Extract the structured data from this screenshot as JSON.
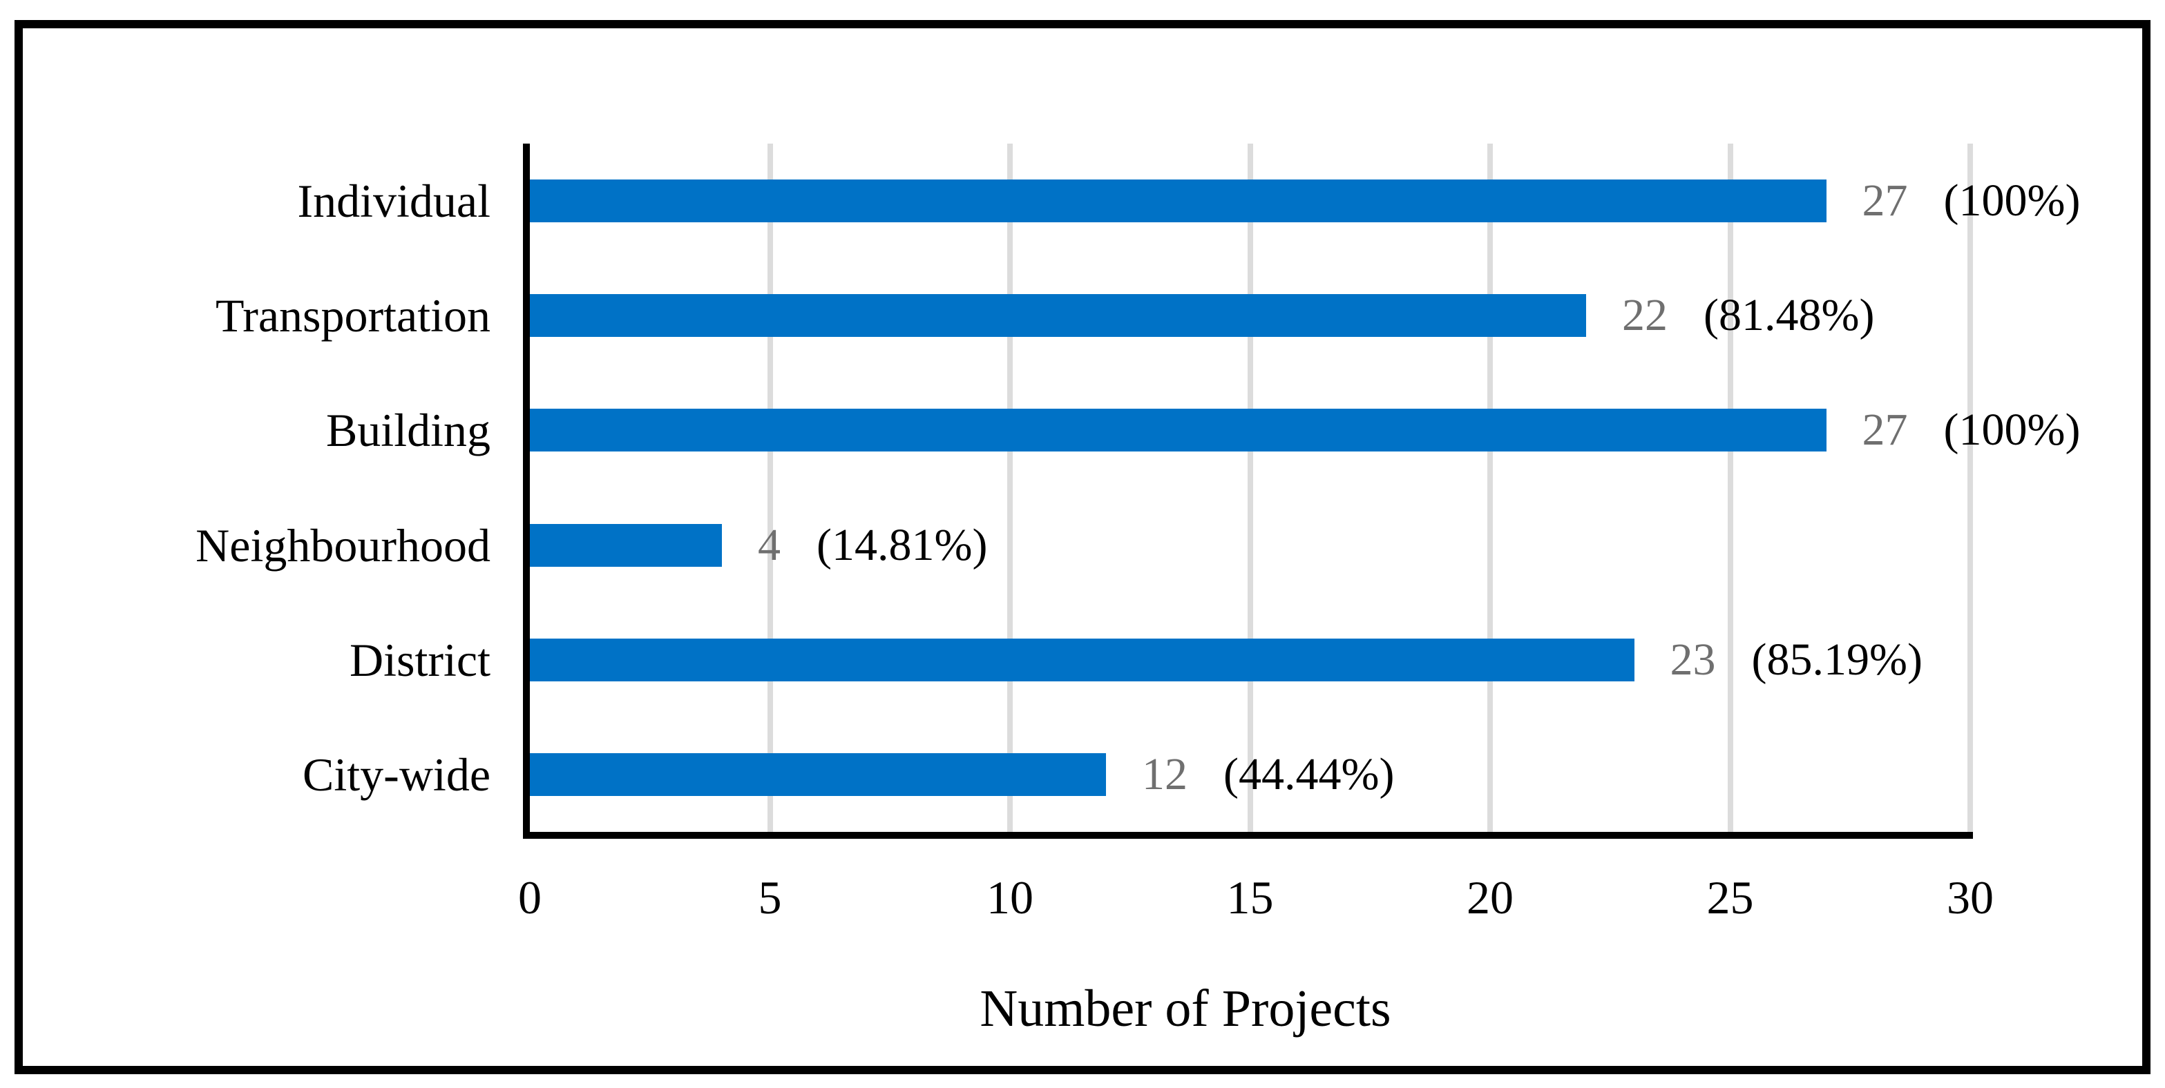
{
  "chart_data": {
    "type": "bar",
    "orientation": "horizontal",
    "title": "",
    "xlabel": "Number of Projects",
    "ylabel": "",
    "categories": [
      "Individual",
      "Transportation",
      "Building",
      "Neighbourhood",
      "District",
      "City-wide"
    ],
    "series": [
      {
        "name": "Number of Projects",
        "values": [
          27,
          22,
          27,
          4,
          23,
          12
        ],
        "count_labels": [
          "27",
          "22",
          "27",
          "4",
          "23",
          "12"
        ],
        "percent_labels": [
          "(100%)",
          "(81.48%)",
          "(100%)",
          "(14.81%)",
          "(85.19%)",
          "(44.44%)"
        ]
      }
    ],
    "xlim": [
      0,
      30
    ],
    "x_ticks": [
      0,
      5,
      10,
      15,
      20,
      25,
      30
    ],
    "grid": true,
    "legend": "none",
    "colors": {
      "bar": "#0072C6",
      "gridline": "#DCDCDC",
      "axis": "#000000",
      "count_label": "#6F6F6F",
      "percent_label": "#000000",
      "frame_border": "#000000",
      "background": "#FFFFFF"
    }
  }
}
